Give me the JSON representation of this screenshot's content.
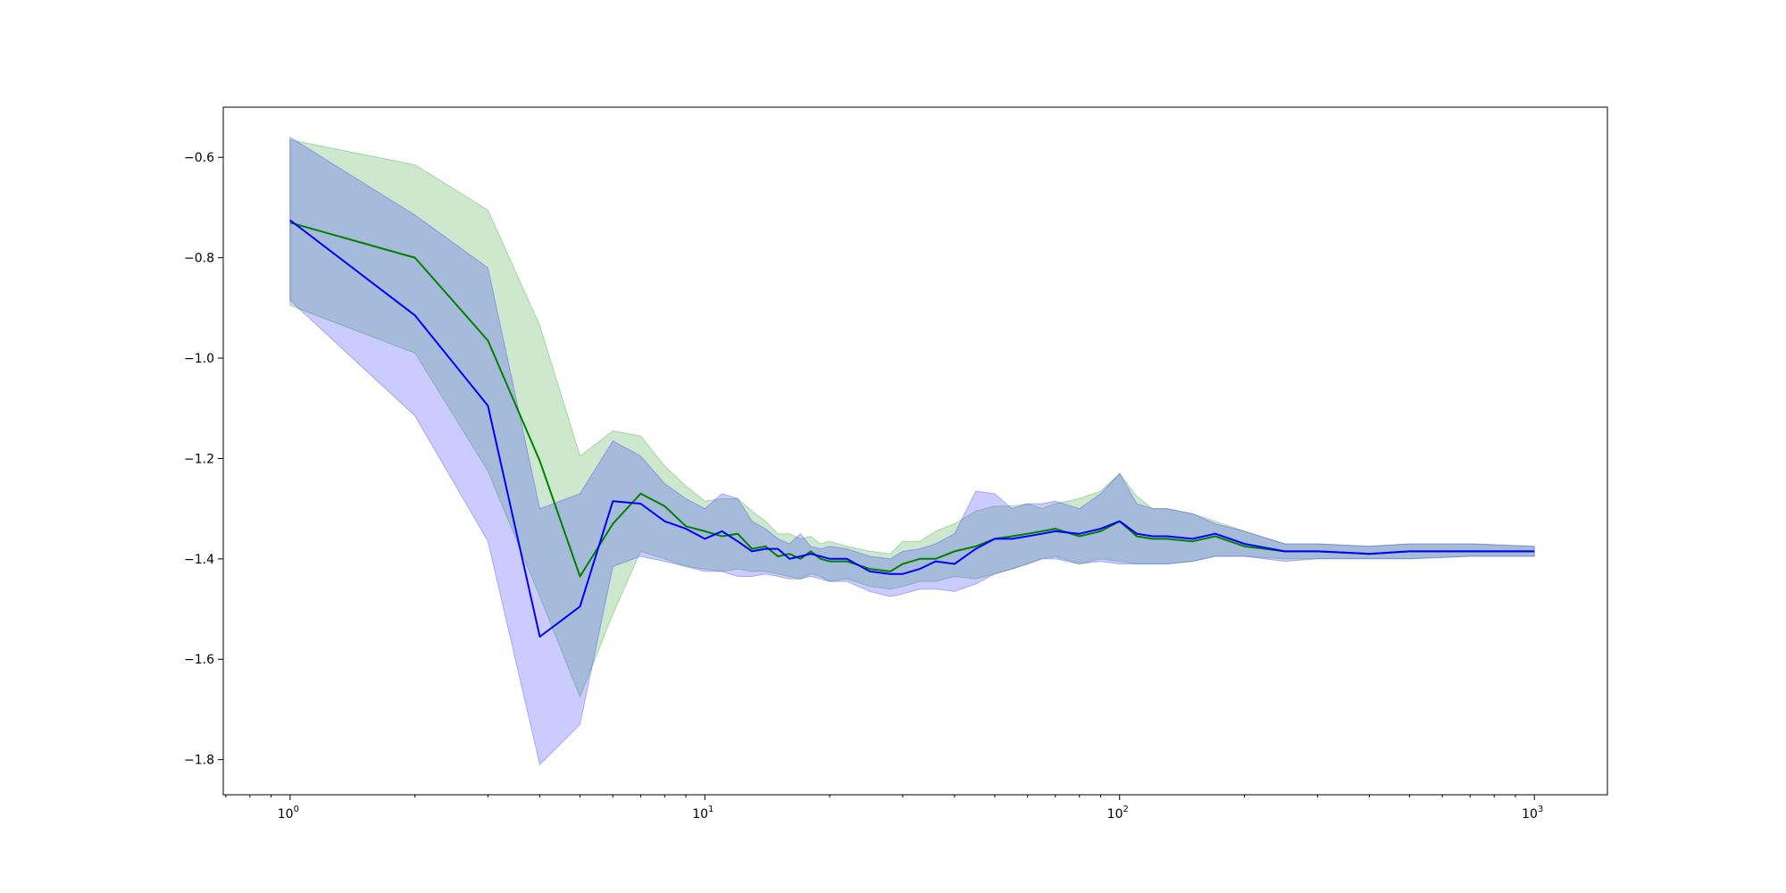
{
  "chart_data": {
    "type": "line",
    "title": "",
    "xlabel": "",
    "ylabel": "",
    "xscale": "log",
    "xlim": [
      0.69,
      1500
    ],
    "ylim": [
      -1.87,
      -0.5
    ],
    "grid": false,
    "legend": "none",
    "x_ticks": [
      {
        "value": 1,
        "base": "10",
        "exp": "0"
      },
      {
        "value": 10,
        "base": "10",
        "exp": "1"
      },
      {
        "value": 100,
        "base": "10",
        "exp": "2"
      },
      {
        "value": 1000,
        "base": "10",
        "exp": "3"
      }
    ],
    "y_ticks": [
      {
        "value": -0.6,
        "label": "−0.6"
      },
      {
        "value": -0.8,
        "label": "−0.8"
      },
      {
        "value": -1.0,
        "label": "−1.0"
      },
      {
        "value": -1.2,
        "label": "−1.2"
      },
      {
        "value": -1.4,
        "label": "−1.4"
      },
      {
        "value": -1.6,
        "label": "−1.6"
      },
      {
        "value": -1.8,
        "label": "−1.8"
      }
    ],
    "series": [
      {
        "color": "#008000",
        "band_color": "#2ca02c",
        "band_opacity": 0.24,
        "x": [
          1,
          2,
          3,
          4,
          5,
          6,
          7,
          8,
          9,
          10,
          11,
          12,
          13,
          14,
          15,
          16,
          17,
          18,
          19,
          20,
          22,
          25,
          28,
          30,
          33,
          36,
          40,
          45,
          50,
          55,
          60,
          65,
          70,
          80,
          90,
          100,
          110,
          120,
          130,
          150,
          170,
          200,
          250,
          300,
          400,
          500,
          700,
          1000
        ],
        "mean": [
          -0.73,
          -0.8,
          -0.965,
          -1.205,
          -1.435,
          -1.33,
          -1.27,
          -1.295,
          -1.335,
          -1.345,
          -1.355,
          -1.35,
          -1.38,
          -1.375,
          -1.395,
          -1.39,
          -1.4,
          -1.385,
          -1.4,
          -1.405,
          -1.405,
          -1.42,
          -1.425,
          -1.41,
          -1.4,
          -1.4,
          -1.385,
          -1.375,
          -1.36,
          -1.355,
          -1.35,
          -1.345,
          -1.34,
          -1.355,
          -1.345,
          -1.325,
          -1.355,
          -1.36,
          -1.36,
          -1.365,
          -1.355,
          -1.375,
          -1.385,
          -1.385,
          -1.39,
          -1.385,
          -1.385,
          -1.385
        ],
        "upper": [
          -0.565,
          -0.615,
          -0.705,
          -0.935,
          -1.195,
          -1.145,
          -1.155,
          -1.215,
          -1.255,
          -1.285,
          -1.28,
          -1.28,
          -1.305,
          -1.325,
          -1.35,
          -1.35,
          -1.36,
          -1.355,
          -1.37,
          -1.365,
          -1.375,
          -1.385,
          -1.39,
          -1.365,
          -1.365,
          -1.345,
          -1.33,
          -1.305,
          -1.295,
          -1.295,
          -1.29,
          -1.3,
          -1.29,
          -1.28,
          -1.265,
          -1.23,
          -1.275,
          -1.3,
          -1.3,
          -1.31,
          -1.325,
          -1.345,
          -1.37,
          -1.37,
          -1.375,
          -1.37,
          -1.37,
          -1.375
        ],
        "lower": [
          -0.895,
          -0.99,
          -1.225,
          -1.475,
          -1.675,
          -1.51,
          -1.385,
          -1.4,
          -1.415,
          -1.42,
          -1.425,
          -1.42,
          -1.425,
          -1.425,
          -1.43,
          -1.435,
          -1.44,
          -1.43,
          -1.435,
          -1.445,
          -1.44,
          -1.455,
          -1.46,
          -1.455,
          -1.445,
          -1.445,
          -1.435,
          -1.44,
          -1.43,
          -1.42,
          -1.41,
          -1.4,
          -1.395,
          -1.41,
          -1.4,
          -1.405,
          -1.41,
          -1.41,
          -1.41,
          -1.405,
          -1.395,
          -1.395,
          -1.4,
          -1.4,
          -1.4,
          -1.4,
          -1.395,
          -1.395
        ]
      },
      {
        "color": "#0000ff",
        "band_color": "#4040ff",
        "band_opacity": 0.27,
        "x": [
          1,
          2,
          3,
          4,
          5,
          6,
          7,
          8,
          9,
          10,
          11,
          12,
          13,
          14,
          15,
          16,
          17,
          18,
          19,
          20,
          22,
          25,
          28,
          30,
          33,
          36,
          40,
          45,
          50,
          55,
          60,
          65,
          70,
          80,
          90,
          100,
          110,
          120,
          130,
          150,
          170,
          200,
          250,
          300,
          400,
          500,
          700,
          1000
        ],
        "mean": [
          -0.725,
          -0.915,
          -1.095,
          -1.555,
          -1.495,
          -1.285,
          -1.29,
          -1.325,
          -1.34,
          -1.36,
          -1.345,
          -1.365,
          -1.385,
          -1.38,
          -1.38,
          -1.4,
          -1.395,
          -1.39,
          -1.395,
          -1.4,
          -1.4,
          -1.425,
          -1.43,
          -1.43,
          -1.42,
          -1.405,
          -1.41,
          -1.38,
          -1.36,
          -1.36,
          -1.355,
          -1.35,
          -1.345,
          -1.35,
          -1.34,
          -1.325,
          -1.35,
          -1.355,
          -1.355,
          -1.36,
          -1.35,
          -1.37,
          -1.385,
          -1.385,
          -1.39,
          -1.385,
          -1.385,
          -1.385
        ],
        "upper": [
          -0.56,
          -0.715,
          -0.82,
          -1.3,
          -1.27,
          -1.165,
          -1.195,
          -1.25,
          -1.28,
          -1.3,
          -1.27,
          -1.28,
          -1.325,
          -1.34,
          -1.36,
          -1.37,
          -1.35,
          -1.375,
          -1.38,
          -1.375,
          -1.38,
          -1.395,
          -1.4,
          -1.385,
          -1.38,
          -1.37,
          -1.35,
          -1.265,
          -1.27,
          -1.3,
          -1.29,
          -1.29,
          -1.285,
          -1.3,
          -1.27,
          -1.23,
          -1.29,
          -1.3,
          -1.3,
          -1.31,
          -1.33,
          -1.345,
          -1.37,
          -1.37,
          -1.375,
          -1.37,
          -1.37,
          -1.375
        ],
        "lower": [
          -0.885,
          -1.115,
          -1.365,
          -1.81,
          -1.73,
          -1.415,
          -1.395,
          -1.405,
          -1.415,
          -1.425,
          -1.425,
          -1.435,
          -1.435,
          -1.43,
          -1.435,
          -1.44,
          -1.44,
          -1.435,
          -1.44,
          -1.445,
          -1.445,
          -1.465,
          -1.475,
          -1.47,
          -1.46,
          -1.46,
          -1.465,
          -1.45,
          -1.43,
          -1.42,
          -1.41,
          -1.4,
          -1.4,
          -1.41,
          -1.405,
          -1.41,
          -1.41,
          -1.41,
          -1.41,
          -1.405,
          -1.395,
          -1.395,
          -1.405,
          -1.4,
          -1.4,
          -1.4,
          -1.395,
          -1.395
        ]
      }
    ]
  }
}
